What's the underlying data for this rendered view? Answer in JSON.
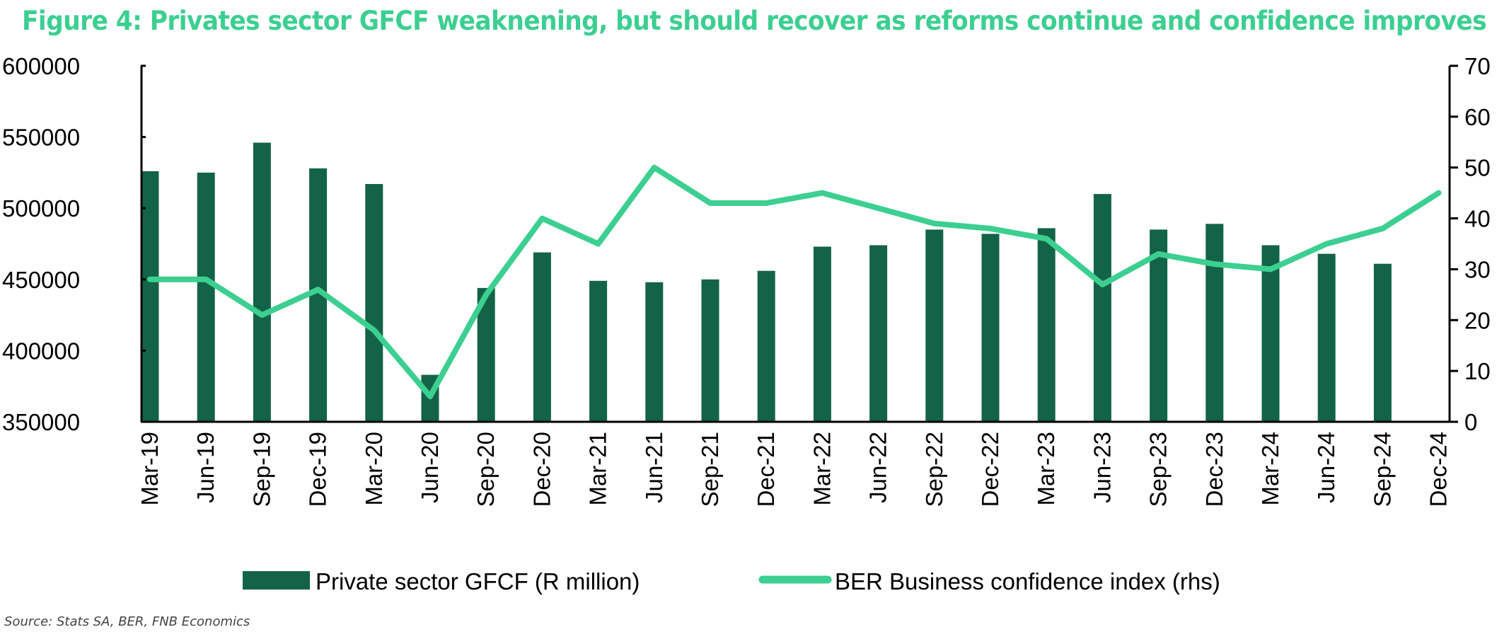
{
  "title": "Figure 4: Privates sector GFCF weaknening, but should recover as reforms continue and confidence improves",
  "source": "Source: Stats SA, BER, FNB Economics",
  "colors": {
    "title": "#3ccf91",
    "bars": "#136348",
    "line": "#3ccf91",
    "axis": "#000000"
  },
  "chart_data": {
    "type": "bar",
    "title": "Figure 4: Privates sector GFCF weaknening, but should recover as reforms continue and confidence improves",
    "xlabel": "",
    "ylabel": "",
    "ylim": [
      350000,
      600000
    ],
    "y2lim": [
      0,
      70
    ],
    "grid": false,
    "legend": "bottom",
    "categories": [
      "Mar-19",
      "Jun-19",
      "Sep-19",
      "Dec-19",
      "Mar-20",
      "Jun-20",
      "Sep-20",
      "Dec-20",
      "Mar-21",
      "Jun-21",
      "Sep-21",
      "Dec-21",
      "Mar-22",
      "Jun-22",
      "Sep-22",
      "Dec-22",
      "Mar-23",
      "Jun-23",
      "Sep-23",
      "Dec-23",
      "Mar-24",
      "Jun-24",
      "Sep-24",
      "Dec-24"
    ],
    "y_ticks": [
      "350000",
      "400000",
      "450000",
      "500000",
      "550000",
      "600000"
    ],
    "y2_ticks": [
      "0",
      "10",
      "20",
      "30",
      "40",
      "50",
      "60",
      "70"
    ],
    "series": [
      {
        "name": "Private sector GFCF (R million)",
        "type": "bar",
        "axis": "left",
        "values": [
          526000,
          525000,
          546000,
          528000,
          517000,
          383000,
          444000,
          469000,
          449000,
          448000,
          450000,
          456000,
          473000,
          474000,
          485000,
          482000,
          486000,
          510000,
          485000,
          489000,
          474000,
          468000,
          461000,
          null
        ]
      },
      {
        "name": "BER Business confidence index (rhs)",
        "type": "line",
        "axis": "right",
        "values": [
          28,
          28,
          21,
          26,
          18,
          5,
          25,
          40,
          35,
          50,
          43,
          43,
          45,
          42,
          39,
          38,
          36,
          27,
          33,
          31,
          30,
          35,
          38,
          45
        ]
      }
    ]
  }
}
